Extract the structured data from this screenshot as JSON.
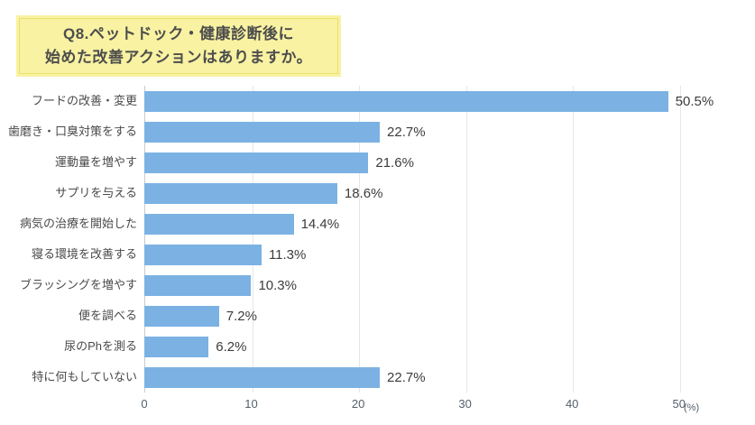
{
  "title": {
    "line1": "Q8.ペットドック・健康診断後に",
    "line2": "始めた改善アクションはありますか。"
  },
  "chart_data": {
    "type": "bar",
    "orientation": "horizontal",
    "title": "Q8.ペットドック・健康診断後に始めた改善アクションはありますか。",
    "categories": [
      "フードの改善・変更",
      "歯磨き・口臭対策をする",
      "運動量を増やす",
      "サプリを与える",
      "病気の治療を開始した",
      "寝る環境を改善する",
      "ブラッシングを増やす",
      "便を調べる",
      "尿のPhを測る",
      "特に何もしていない"
    ],
    "values": [
      50.5,
      22.7,
      21.6,
      18.6,
      14.4,
      11.3,
      10.3,
      7.2,
      6.2,
      22.7
    ],
    "value_suffix": "%",
    "xlabel": "(%)",
    "x_ticks": [
      0,
      10,
      20,
      30,
      40,
      50
    ],
    "xlim": [
      0,
      55
    ],
    "grid": "vertical",
    "legend": "none"
  },
  "colors": {
    "bar": "#7BB2E3",
    "title_bg": "#F8F2A2",
    "title_border": "#EBDF6C",
    "gridline": "#E4E6E8",
    "axis_line": "#C6CBD0",
    "label_text": "#4A4A4A",
    "value_text": "#3C3C3C",
    "tick_text": "#55606B"
  }
}
